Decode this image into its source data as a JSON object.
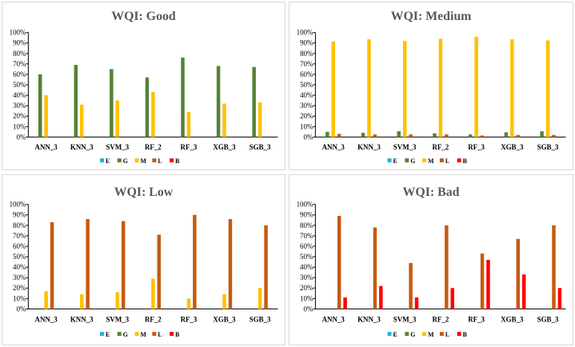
{
  "series_meta": [
    {
      "key": "E",
      "color": "#1fb1e0"
    },
    {
      "key": "G",
      "color": "#548235"
    },
    {
      "key": "M",
      "color": "#ffc000"
    },
    {
      "key": "L",
      "color": "#c55a11"
    },
    {
      "key": "B",
      "color": "#ff0000"
    }
  ],
  "chart_data": [
    {
      "type": "bar",
      "title": "WQI: Good",
      "categories": [
        "ANN_3",
        "KNN_3",
        "SVM_3",
        "RF_2",
        "RF_3",
        "XGB_3",
        "SGB_3"
      ],
      "yticks": [
        "0%",
        "10%",
        "20%",
        "30%",
        "40%",
        "50%",
        "60%",
        "70%",
        "80%",
        "90%",
        "100%"
      ],
      "ylim": [
        0,
        100
      ],
      "legend": [
        "E",
        "G",
        "M",
        "L",
        "B"
      ],
      "series": [
        {
          "name": "E",
          "values": [
            0,
            0,
            0,
            0,
            0,
            0,
            0
          ]
        },
        {
          "name": "G",
          "values": [
            60,
            69,
            65,
            57,
            76,
            68,
            67
          ]
        },
        {
          "name": "M",
          "values": [
            40,
            31,
            35,
            43,
            24,
            32,
            33
          ]
        },
        {
          "name": "L",
          "values": [
            0,
            0,
            0,
            0,
            0,
            0,
            0
          ]
        },
        {
          "name": "B",
          "values": [
            0,
            0,
            0,
            0,
            0,
            0,
            0
          ]
        }
      ]
    },
    {
      "type": "bar",
      "title": "WQI: Medium",
      "categories": [
        "ANN_3",
        "KNN_3",
        "SVM_3",
        "RF_2",
        "RF_3",
        "XGB_3",
        "SGB_3"
      ],
      "yticks": [
        "0%",
        "10%",
        "20%",
        "30%",
        "40%",
        "50%",
        "60%",
        "70%",
        "80%",
        "90%",
        "100%"
      ],
      "ylim": [
        0,
        100
      ],
      "legend": [
        "E",
        "G",
        "M",
        "L",
        "B"
      ],
      "series": [
        {
          "name": "E",
          "values": [
            0,
            0,
            0,
            0,
            0,
            0,
            0
          ]
        },
        {
          "name": "G",
          "values": [
            5,
            4,
            5.5,
            3.5,
            2.5,
            4.5,
            5.5
          ]
        },
        {
          "name": "M",
          "values": [
            91.5,
            93.5,
            92,
            94,
            96,
            93.5,
            92.5
          ]
        },
        {
          "name": "L",
          "values": [
            3,
            2.5,
            2.5,
            2.5,
            1.5,
            2,
            2
          ]
        },
        {
          "name": "B",
          "values": [
            0,
            0,
            0,
            0,
            0,
            0,
            0
          ]
        }
      ]
    },
    {
      "type": "bar",
      "title": "WQI: Low",
      "categories": [
        "ANN_3",
        "KNN_3",
        "SVM_3",
        "RF_2",
        "RF_3",
        "XGB_3",
        "SGB_3"
      ],
      "yticks": [
        "0%",
        "10%",
        "20%",
        "30%",
        "40%",
        "50%",
        "60%",
        "70%",
        "80%",
        "90%",
        "100%"
      ],
      "ylim": [
        0,
        100
      ],
      "legend": [
        "E",
        "G",
        "M",
        "L",
        "B"
      ],
      "series": [
        {
          "name": "E",
          "values": [
            0,
            0,
            0,
            0,
            0,
            0,
            0
          ]
        },
        {
          "name": "G",
          "values": [
            0,
            0,
            0,
            0,
            0,
            0,
            0
          ]
        },
        {
          "name": "M",
          "values": [
            17,
            14,
            16,
            29,
            10,
            14,
            20
          ]
        },
        {
          "name": "L",
          "values": [
            83,
            86,
            84,
            71,
            90,
            86,
            80
          ]
        },
        {
          "name": "B",
          "values": [
            0,
            0,
            0,
            0,
            0,
            0,
            0
          ]
        }
      ]
    },
    {
      "type": "bar",
      "title": "WQI: Bad",
      "categories": [
        "ANN_3",
        "KNN_3",
        "SVM_3",
        "RF_2",
        "RF_3",
        "XGB_3",
        "SGB_3"
      ],
      "yticks": [
        "0%",
        "10%",
        "20%",
        "30%",
        "40%",
        "50%",
        "60%",
        "70%",
        "80%",
        "90%",
        "100%"
      ],
      "ylim": [
        0,
        100
      ],
      "legend": [
        "E",
        "G",
        "M",
        "L",
        "B"
      ],
      "series": [
        {
          "name": "E",
          "values": [
            0,
            0,
            0,
            0,
            0,
            0,
            0
          ]
        },
        {
          "name": "G",
          "values": [
            0,
            0,
            0,
            0,
            0,
            0,
            0
          ]
        },
        {
          "name": "M",
          "values": [
            0,
            0,
            0,
            0,
            0,
            0,
            0
          ]
        },
        {
          "name": "L",
          "values": [
            89,
            78,
            44,
            80,
            53,
            67,
            80
          ]
        },
        {
          "name": "B",
          "values": [
            11,
            22,
            11,
            20,
            47,
            33,
            20
          ]
        }
      ]
    }
  ]
}
